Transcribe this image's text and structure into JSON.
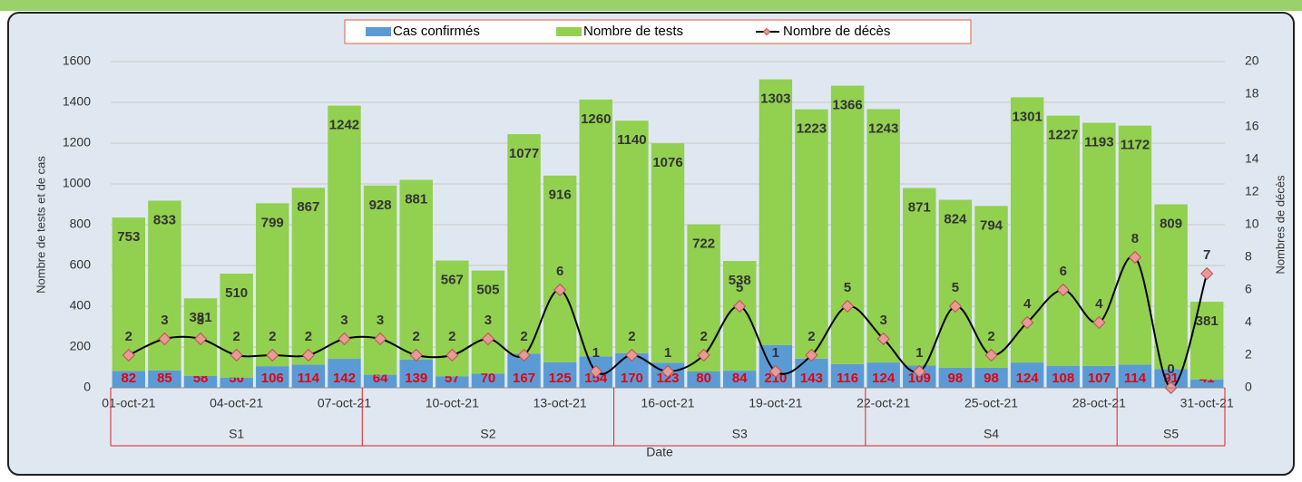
{
  "chart_data": {
    "type": "bar",
    "x_label": "Date",
    "y_label": "Nombre de tests et de cas",
    "y2_label": "Nombres de décès",
    "categories": [
      "01-oct-21",
      null,
      null,
      "04-oct-21",
      null,
      null,
      "07-oct-21",
      null,
      null,
      "10-oct-21",
      null,
      null,
      "13-oct-21",
      null,
      null,
      "16-oct-21",
      null,
      null,
      "19-oct-21",
      null,
      null,
      "22-oct-21",
      null,
      null,
      "25-oct-21",
      null,
      null,
      "28-oct-21",
      null,
      null,
      "31-oct-21"
    ],
    "groups": [
      {
        "label": "S1",
        "size": 7
      },
      {
        "label": "S2",
        "size": 7
      },
      {
        "label": "S3",
        "size": 7
      },
      {
        "label": "S4",
        "size": 7
      },
      {
        "label": "S5",
        "size": 3
      }
    ],
    "series": [
      {
        "name": "Cas confirmés",
        "color": "#5b9bd5",
        "stacked": true,
        "values": [
          82,
          85,
          58,
          50,
          106,
          114,
          142,
          64,
          139,
          57,
          70,
          167,
          125,
          154,
          170,
          123,
          80,
          84,
          210,
          143,
          116,
          124,
          109,
          98,
          98,
          124,
          108,
          107,
          114,
          91,
          41
        ]
      },
      {
        "name": "Nombre de tests",
        "color": "#92d050",
        "stacked": true,
        "values": [
          753,
          833,
          381,
          510,
          799,
          867,
          1242,
          928,
          881,
          567,
          505,
          1077,
          916,
          1260,
          1140,
          1076,
          722,
          538,
          1303,
          1223,
          1366,
          1243,
          871,
          824,
          794,
          1301,
          1227,
          1193,
          1172,
          809,
          381
        ]
      },
      {
        "name": "Nombre de décès",
        "color": "#000000",
        "marker_color": "#e89a9a",
        "kind": "line",
        "axis": "y2",
        "values": [
          2,
          3,
          3,
          2,
          2,
          2,
          3,
          3,
          2,
          2,
          3,
          2,
          6,
          1,
          2,
          1,
          2,
          5,
          1,
          2,
          5,
          3,
          1,
          5,
          2,
          4,
          6,
          4,
          8,
          0,
          7
        ]
      }
    ],
    "ylim": [
      0,
      1600
    ],
    "yticks": [
      0,
      200,
      400,
      600,
      800,
      1000,
      1200,
      1400,
      1600
    ],
    "y2lim": [
      0,
      20
    ],
    "y2ticks": [
      0,
      2,
      4,
      6,
      8,
      10,
      12,
      14,
      16,
      18,
      20
    ],
    "grid": true,
    "legend": "top"
  }
}
